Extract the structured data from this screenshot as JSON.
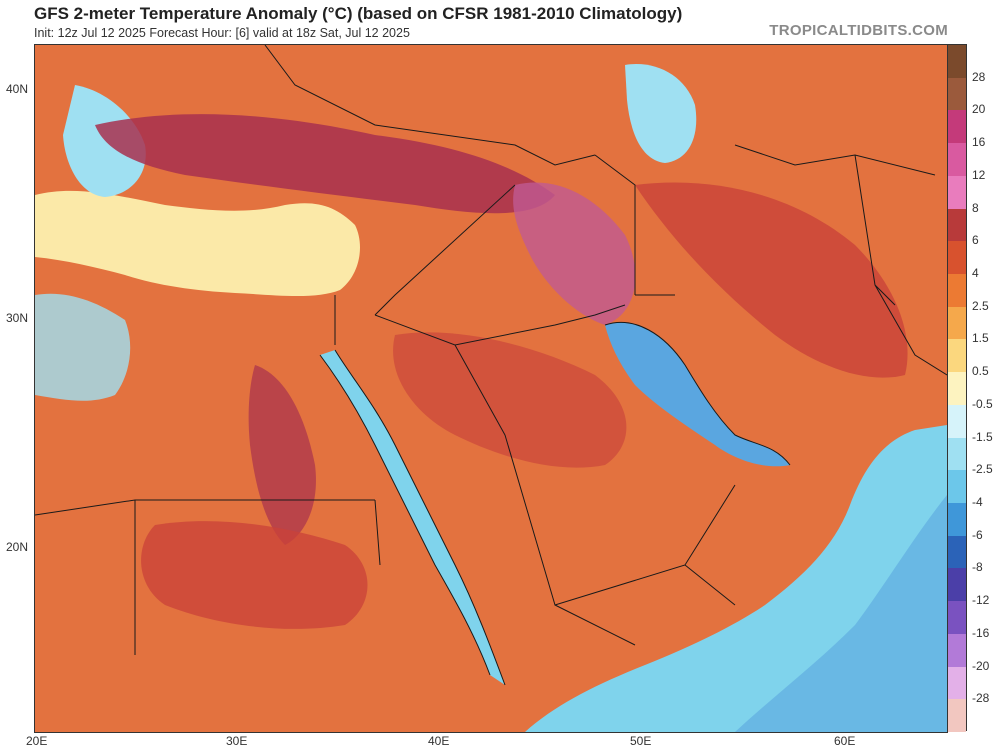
{
  "header": {
    "title": "GFS 2-meter Temperature Anomaly (°C) (based on CFSR 1981-2010 Climatology)",
    "subtitle": "Init: 12z Jul 12 2025   Forecast Hour: [6]   valid at 18z Sat, Jul 12 2025",
    "brand": "TROPICALTIDBITS.COM"
  },
  "map": {
    "lat_labels": [
      "40N",
      "30N",
      "20N"
    ],
    "lon_labels": [
      "20E",
      "30E",
      "40E",
      "50E",
      "60E"
    ],
    "colors": {
      "sea_cool": "#7fd3ec",
      "sea_blue": "#5aa6e0",
      "land_warm": "#e3723f",
      "land_hot": "#c9423a",
      "land_very_hot": "#a8304f",
      "hot_magenta": "#c05a92",
      "pale_yellow": "#fbe9a8",
      "border": "#1a1a1a"
    }
  },
  "colorbar": {
    "labels": [
      "28",
      "20",
      "16",
      "12",
      "8",
      "6",
      "4",
      "2.5",
      "1.5",
      "0.5",
      "-0.5",
      "-1.5",
      "-2.5",
      "-4",
      "-6",
      "-8",
      "-12",
      "-16",
      "-20",
      "-28"
    ],
    "colors": [
      "#7b4a2c",
      "#9b5a3c",
      "#c43a7a",
      "#d95aa0",
      "#e97cbd",
      "#b83a3a",
      "#d8522e",
      "#ec7a33",
      "#f5a84b",
      "#fbd77e",
      "#fdf3c0",
      "#d6f3fa",
      "#9fe0f2",
      "#6cc7ea",
      "#3f97d9",
      "#2b63b8",
      "#4b3fa8",
      "#7a52c0",
      "#b27ad8",
      "#e3b0e8",
      "#f2c7c0"
    ]
  }
}
